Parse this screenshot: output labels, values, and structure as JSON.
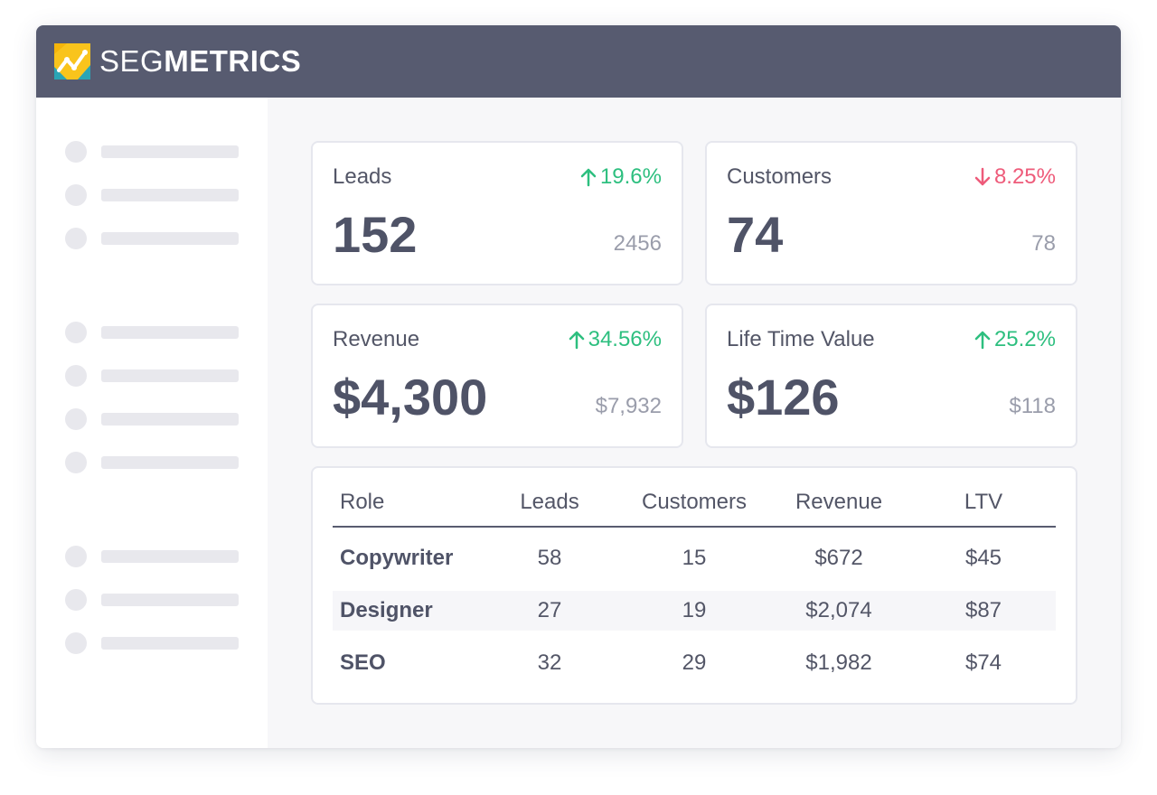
{
  "brand": {
    "name_light": "SEG",
    "name_bold": "METRICS",
    "colors": {
      "header_bg": "#575b70",
      "logo_yellow": "#f9c41c",
      "logo_teal": "#2aa5b5",
      "up": "#2dbf7f",
      "down": "#ee5b7a"
    }
  },
  "metrics": [
    {
      "label": "Leads",
      "change": "19.6%",
      "direction": "up",
      "value": "152",
      "previous": "2456"
    },
    {
      "label": "Customers",
      "change": "8.25%",
      "direction": "down",
      "value": "74",
      "previous": "78"
    },
    {
      "label": "Revenue",
      "change": "34.56%",
      "direction": "up",
      "value": "$4,300",
      "previous": "$7,932"
    },
    {
      "label": "Life Time Value",
      "change": "25.2%",
      "direction": "up",
      "value": "$126",
      "previous": "$118"
    }
  ],
  "table": {
    "headers": [
      "Role",
      "Leads",
      "Customers",
      "Revenue",
      "LTV"
    ],
    "rows": [
      [
        "Copywriter",
        "58",
        "15",
        "$672",
        "$45"
      ],
      [
        "Designer",
        "27",
        "19",
        "$2,074",
        "$87"
      ],
      [
        "SEO",
        "32",
        "29",
        "$1,982",
        "$74"
      ]
    ]
  }
}
